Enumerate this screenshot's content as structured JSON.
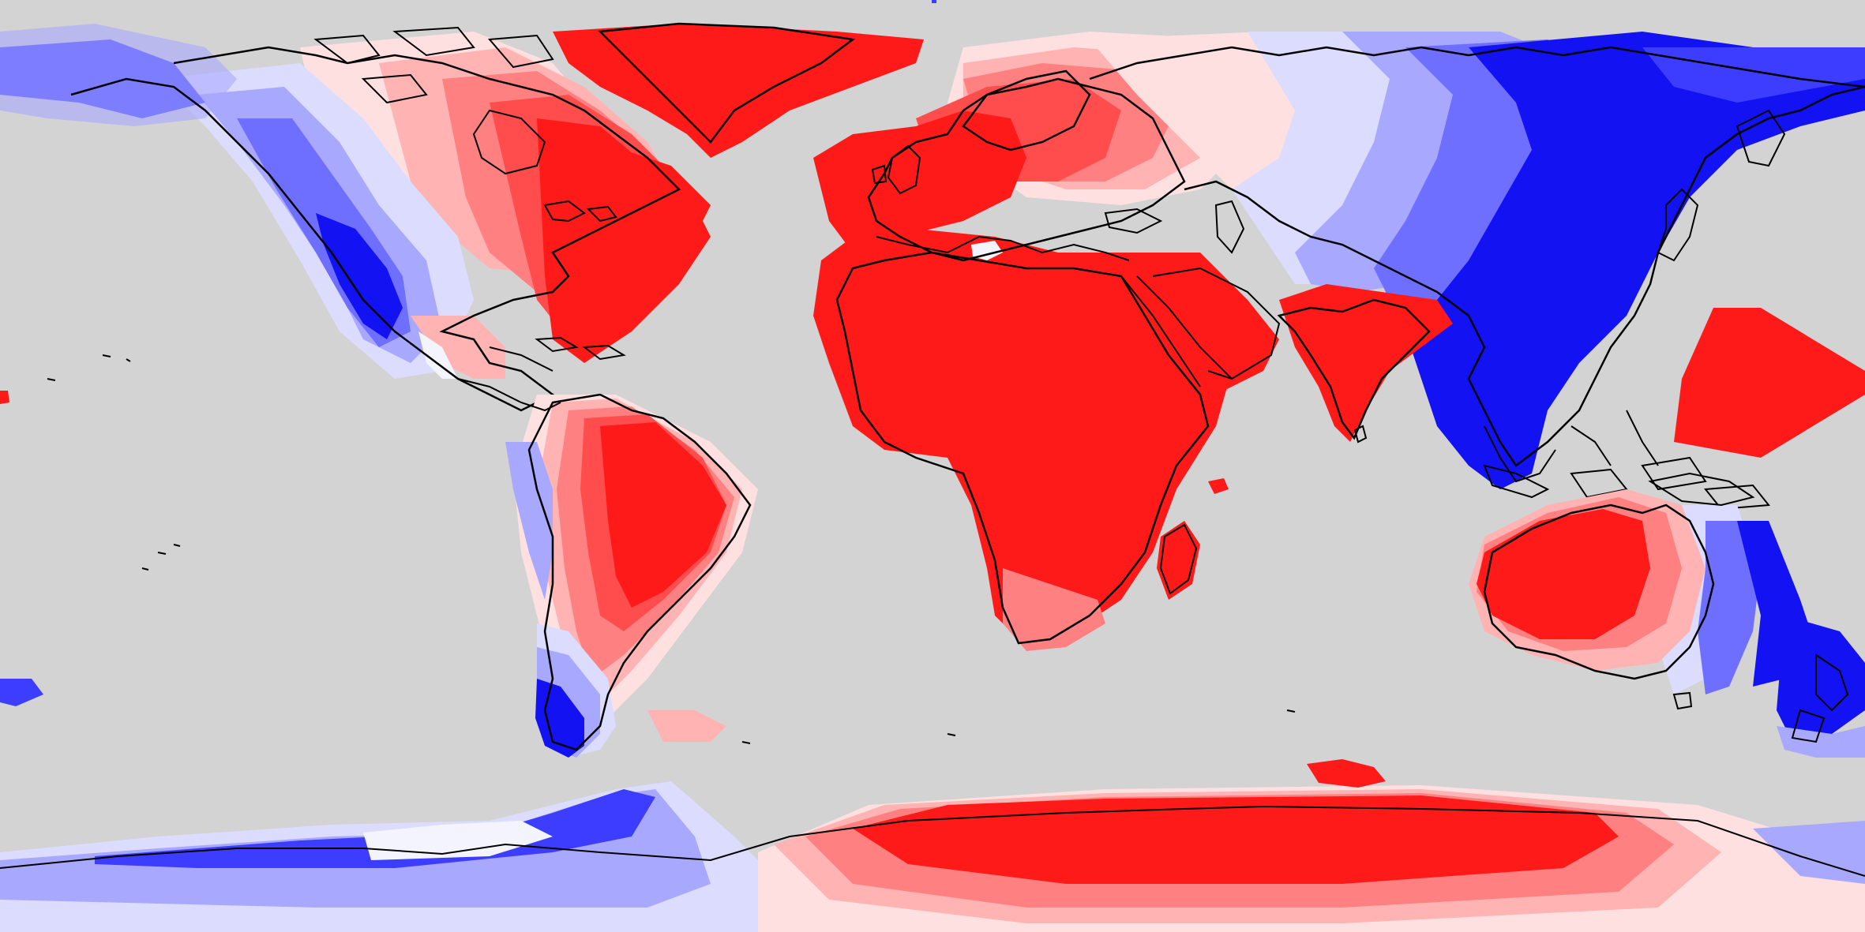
{
  "map": {
    "projection": "equirectangular",
    "background_color": "#d3d3d3",
    "coastline_color": "#000000",
    "palette": {
      "strong_red": "#ff1a1a",
      "red": "#ff4d4d",
      "medium_red": "#ff8080",
      "light_red": "#ffb3b3",
      "pale_red": "#ffe0e0",
      "white": "#f4f4ff",
      "pale_blue": "#dcdcff",
      "light_blue": "#a8a8ff",
      "medium_blue": "#6f6fff",
      "blue": "#3d3dff",
      "strong_blue": "#1212f2"
    },
    "colorbar": "not shown",
    "legend": "none",
    "title": ""
  }
}
